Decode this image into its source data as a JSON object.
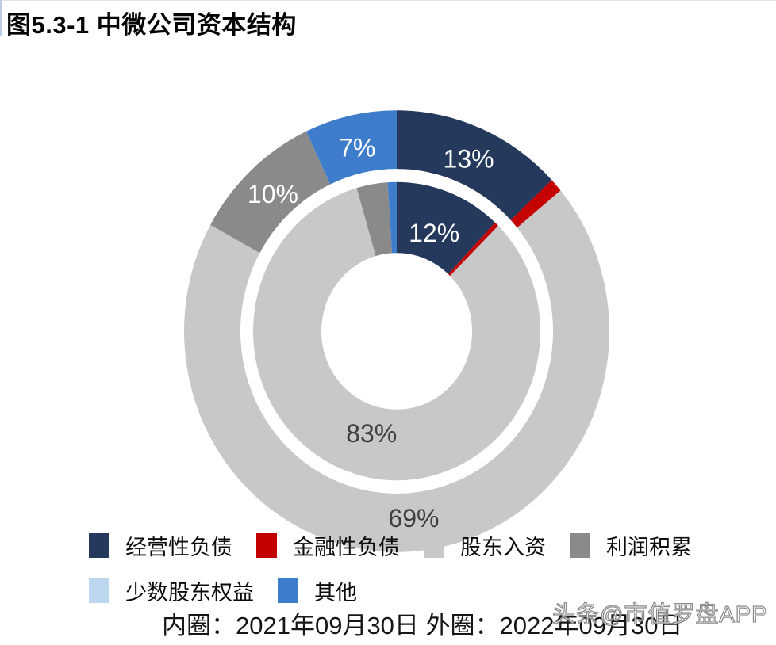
{
  "title": "图5.3-1 中微公司资本结构",
  "caption": "内圈：2021年09月30日 外圈：2022年09月30日",
  "watermark": "头条@市值罗盘APP",
  "colors": {
    "navy": "#24395C",
    "red": "#C40000",
    "light_gray": "#C8C8C8",
    "gray": "#8A8A8A",
    "light_blue": "#BDD7EE",
    "blue": "#3E7DCC",
    "label_on_dark": "#FFFFFF",
    "label_on_light": "#3F3F3F"
  },
  "chart_data": {
    "type": "pie",
    "subtype": "double-donut",
    "title": "图5.3-1 中微公司资本结构",
    "categories": [
      "经营性负债",
      "金融性负债",
      "股东入资",
      "利润积累",
      "少数股东权益",
      "其他"
    ],
    "series": [
      {
        "name": "inner",
        "date_label": "2021年09月30日",
        "values": [
          12,
          0.5,
          83,
          3.5,
          0,
          1
        ]
      },
      {
        "name": "outer",
        "date_label": "2022年09月30日",
        "values": [
          13,
          1,
          69,
          10,
          0,
          7
        ]
      }
    ],
    "data_labels": {
      "inner": [
        "12%",
        "",
        "83%",
        "",
        "",
        ""
      ],
      "outer": [
        "13%",
        "",
        "69%",
        "10%",
        "",
        "7%"
      ]
    },
    "legend_position": "bottom",
    "start_angle_deg": 0,
    "units": "percent"
  },
  "legend": {
    "rows": [
      [
        {
          "label": "经营性负债",
          "color": "#24395C"
        },
        {
          "label": "金融性负债",
          "color": "#C40000"
        },
        {
          "label": "股东入资",
          "color": "#C8C8C8"
        },
        {
          "label": "利润积累",
          "color": "#8A8A8A"
        }
      ],
      [
        {
          "label": "少数股东权益",
          "color": "#BDD7EE"
        },
        {
          "label": "其他",
          "color": "#3E7DCC"
        }
      ]
    ]
  }
}
